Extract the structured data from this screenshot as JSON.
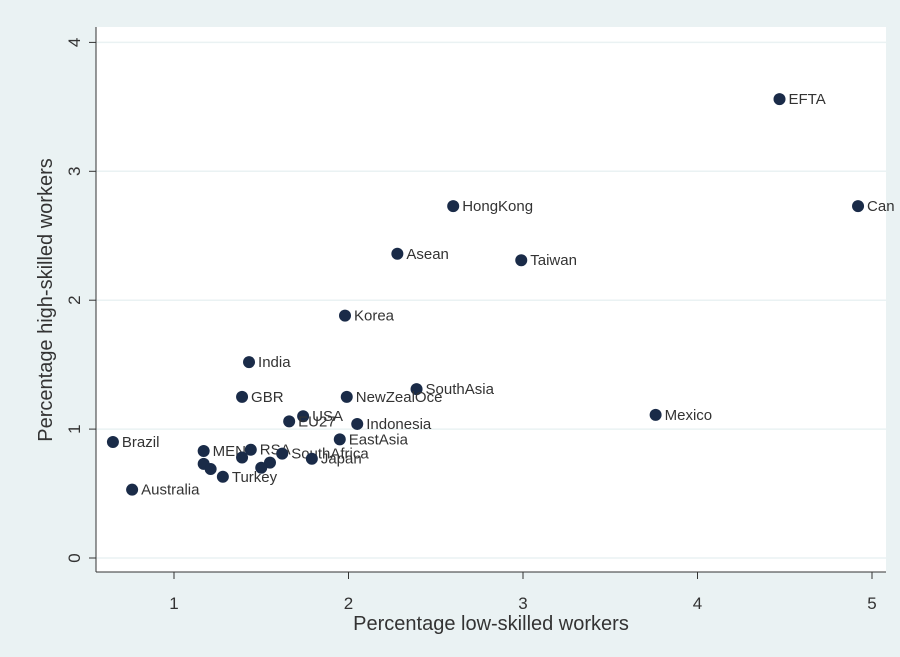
{
  "chart_data": {
    "type": "scatter",
    "title": "",
    "xlabel": "Percentage low-skilled workers",
    "ylabel": "Percentage high-skilled workers",
    "xlim": [
      0.55,
      5.05
    ],
    "ylim": [
      -0.1,
      4.2
    ],
    "xticks": [
      "1",
      "2",
      "3",
      "4",
      "5"
    ],
    "yticks": [
      "0",
      "1",
      "2",
      "3",
      "4"
    ],
    "grid": true,
    "marker_color": "#1a2b48",
    "grid_color": "#eaf2f3",
    "points": [
      {
        "label": "EFTA",
        "x": 4.47,
        "y": 3.56
      },
      {
        "label": "Can",
        "x": 4.92,
        "y": 2.73
      },
      {
        "label": "HongKong",
        "x": 2.6,
        "y": 2.73
      },
      {
        "label": "Asean",
        "x": 2.28,
        "y": 2.36
      },
      {
        "label": "Taiwan",
        "x": 2.99,
        "y": 2.31
      },
      {
        "label": "Korea",
        "x": 1.98,
        "y": 1.88
      },
      {
        "label": "India",
        "x": 1.43,
        "y": 1.52
      },
      {
        "label": "SouthAsia",
        "x": 2.39,
        "y": 1.31
      },
      {
        "label": "GBR",
        "x": 1.39,
        "y": 1.25
      },
      {
        "label": "NewZealOce",
        "x": 1.99,
        "y": 1.25
      },
      {
        "label": "USA",
        "x": 1.74,
        "y": 1.1
      },
      {
        "label": "EU27",
        "x": 1.66,
        "y": 1.06
      },
      {
        "label": "Indonesia",
        "x": 2.05,
        "y": 1.04
      },
      {
        "label": "Mexico",
        "x": 3.76,
        "y": 1.11
      },
      {
        "label": "EastAsia",
        "x": 1.95,
        "y": 0.92
      },
      {
        "label": "Brazil",
        "x": 0.65,
        "y": 0.9
      },
      {
        "label": "MEN",
        "x": 1.17,
        "y": 0.83
      },
      {
        "label": "RSA",
        "x": 1.44,
        "y": 0.84
      },
      {
        "label": "SouthAfrica",
        "x": 1.62,
        "y": 0.81
      },
      {
        "label": "Japan",
        "x": 1.79,
        "y": 0.77
      },
      {
        "label": "",
        "x": 1.39,
        "y": 0.78
      },
      {
        "label": "",
        "x": 1.55,
        "y": 0.74
      },
      {
        "label": "",
        "x": 1.5,
        "y": 0.7
      },
      {
        "label": "",
        "x": 1.17,
        "y": 0.73
      },
      {
        "label": "",
        "x": 1.21,
        "y": 0.69
      },
      {
        "label": "Turkey",
        "x": 1.28,
        "y": 0.63
      },
      {
        "label": "Australia",
        "x": 0.76,
        "y": 0.53
      }
    ]
  }
}
